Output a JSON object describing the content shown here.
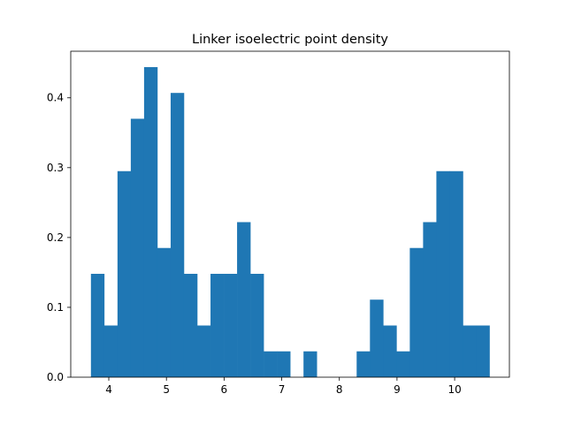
{
  "chart_data": {
    "type": "bar",
    "title": "Linker isoelectric point density",
    "xlabel": "",
    "ylabel": "",
    "xlim": [
      3.34,
      10.95
    ],
    "ylim": [
      0,
      0.4667
    ],
    "x_ticks": [
      4,
      5,
      6,
      7,
      8,
      9,
      10
    ],
    "y_ticks": [
      0.0,
      0.1,
      0.2,
      0.3,
      0.4
    ],
    "x_tick_labels": [
      "4",
      "5",
      "6",
      "7",
      "8",
      "9",
      "10"
    ],
    "y_tick_labels": [
      "0.0",
      "0.1",
      "0.2",
      "0.3",
      "0.4"
    ],
    "bar_color": "#1f77b4",
    "grid": false,
    "bins": {
      "start": 3.69,
      "width": 0.2305,
      "densities": [
        0.148,
        0.074,
        0.295,
        0.37,
        0.444,
        0.185,
        0.407,
        0.148,
        0.074,
        0.148,
        0.148,
        0.222,
        0.148,
        0.037,
        0.037,
        0.0,
        0.037,
        0.0,
        0.0,
        0.0,
        0.037,
        0.111,
        0.074,
        0.037,
        0.185,
        0.222,
        0.295,
        0.295,
        0.074,
        0.074
      ]
    }
  }
}
